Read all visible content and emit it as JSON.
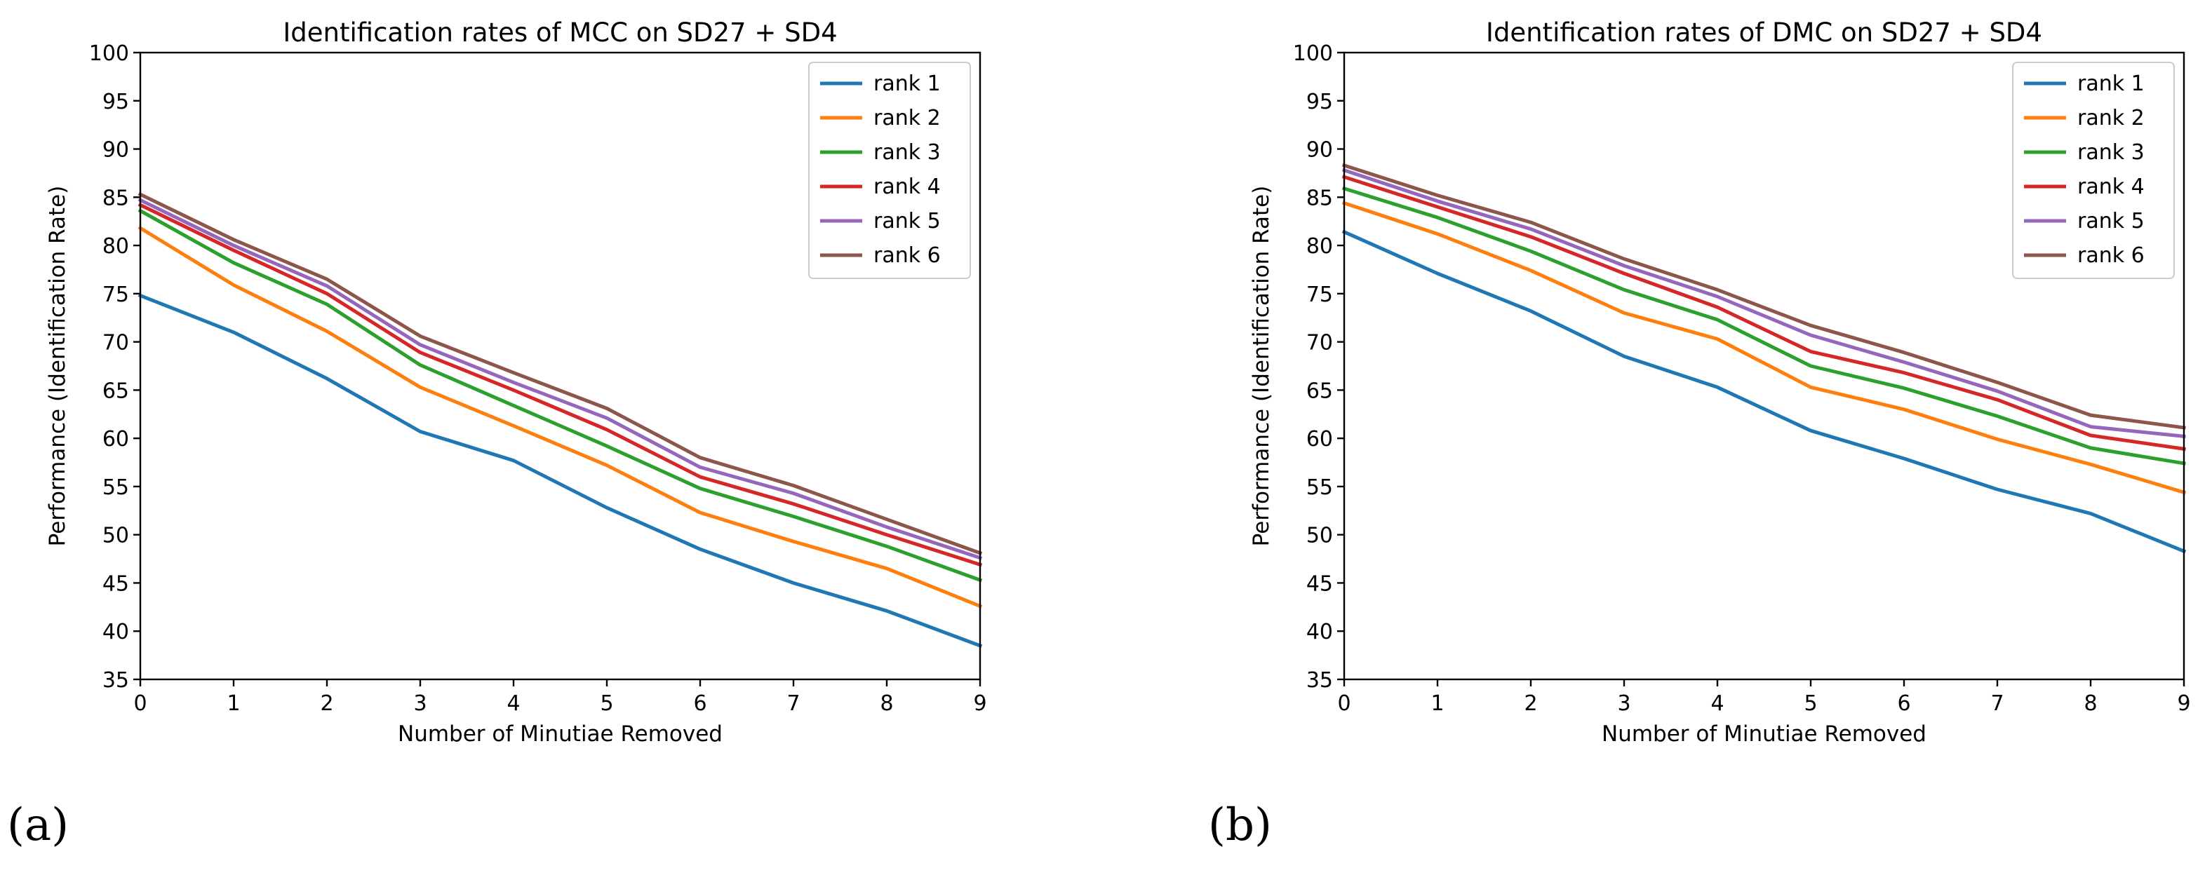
{
  "chart_data": [
    {
      "type": "line",
      "panel_label": "(a)",
      "title": "Identification rates of MCC on SD27 + SD4",
      "xlabel": "Number of Minutiae Removed",
      "ylabel": "Performance (Identification Rate)",
      "xlim": [
        0,
        9
      ],
      "ylim": [
        35,
        100
      ],
      "x": [
        0,
        1,
        2,
        3,
        4,
        5,
        6,
        7,
        8,
        9
      ],
      "xticks": [
        "0",
        "1",
        "2",
        "3",
        "4",
        "5",
        "6",
        "7",
        "8",
        "9"
      ],
      "yticks": [
        "35",
        "40",
        "45",
        "50",
        "55",
        "60",
        "65",
        "70",
        "75",
        "80",
        "85",
        "90",
        "95",
        "100"
      ],
      "grid": false,
      "legend_position": "top-right",
      "series": [
        {
          "name": "rank 1",
          "color": "#1f77b4",
          "values": [
            74.8,
            71.0,
            66.2,
            60.7,
            57.7,
            52.8,
            48.5,
            45.0,
            42.1,
            38.5
          ]
        },
        {
          "name": "rank 2",
          "color": "#ff7f0e",
          "values": [
            81.8,
            75.9,
            71.1,
            65.3,
            61.3,
            57.2,
            52.3,
            49.3,
            46.5,
            42.6
          ]
        },
        {
          "name": "rank 3",
          "color": "#2ca02c",
          "values": [
            83.6,
            78.2,
            73.9,
            67.6,
            63.4,
            59.2,
            54.8,
            51.9,
            48.8,
            45.3
          ]
        },
        {
          "name": "rank 4",
          "color": "#d62728",
          "values": [
            84.2,
            79.5,
            75.0,
            68.9,
            65.0,
            60.9,
            56.0,
            53.2,
            50.0,
            46.9
          ]
        },
        {
          "name": "rank 5",
          "color": "#9467bd",
          "values": [
            84.7,
            80.0,
            75.8,
            69.7,
            65.8,
            62.1,
            57.0,
            54.3,
            50.8,
            47.6
          ]
        },
        {
          "name": "rank 6",
          "color": "#8c564b",
          "values": [
            85.3,
            80.6,
            76.5,
            70.6,
            66.8,
            63.1,
            58.0,
            55.1,
            51.6,
            48.1
          ]
        }
      ]
    },
    {
      "type": "line",
      "panel_label": "(b)",
      "title": "Identification rates of DMC on SD27 + SD4",
      "xlabel": "Number of Minutiae Removed",
      "ylabel": "Performance (Identification Rate)",
      "xlim": [
        0,
        9
      ],
      "ylim": [
        35,
        100
      ],
      "x": [
        0,
        1,
        2,
        3,
        4,
        5,
        6,
        7,
        8,
        9
      ],
      "xticks": [
        "0",
        "1",
        "2",
        "3",
        "4",
        "5",
        "6",
        "7",
        "8",
        "9"
      ],
      "yticks": [
        "35",
        "40",
        "45",
        "50",
        "55",
        "60",
        "65",
        "70",
        "75",
        "80",
        "85",
        "90",
        "95",
        "100"
      ],
      "grid": false,
      "legend_position": "top-right",
      "series": [
        {
          "name": "rank 1",
          "color": "#1f77b4",
          "values": [
            81.4,
            77.1,
            73.2,
            68.5,
            65.3,
            60.8,
            57.9,
            54.7,
            52.2,
            48.3
          ]
        },
        {
          "name": "rank 2",
          "color": "#ff7f0e",
          "values": [
            84.4,
            81.2,
            77.4,
            73.0,
            70.3,
            65.3,
            63.0,
            59.9,
            57.3,
            54.4
          ]
        },
        {
          "name": "rank 3",
          "color": "#2ca02c",
          "values": [
            85.9,
            82.9,
            79.4,
            75.4,
            72.3,
            67.5,
            65.2,
            62.3,
            59.0,
            57.4
          ]
        },
        {
          "name": "rank 4",
          "color": "#d62728",
          "values": [
            87.1,
            84.0,
            80.9,
            77.1,
            73.6,
            69.0,
            66.8,
            64.0,
            60.3,
            58.9
          ]
        },
        {
          "name": "rank 5",
          "color": "#9467bd",
          "values": [
            87.8,
            84.6,
            81.7,
            77.9,
            74.7,
            70.7,
            67.9,
            64.9,
            61.2,
            60.2
          ]
        },
        {
          "name": "rank 6",
          "color": "#8c564b",
          "values": [
            88.3,
            85.2,
            82.4,
            78.6,
            75.4,
            71.7,
            68.9,
            65.8,
            62.4,
            61.1
          ]
        }
      ]
    }
  ]
}
